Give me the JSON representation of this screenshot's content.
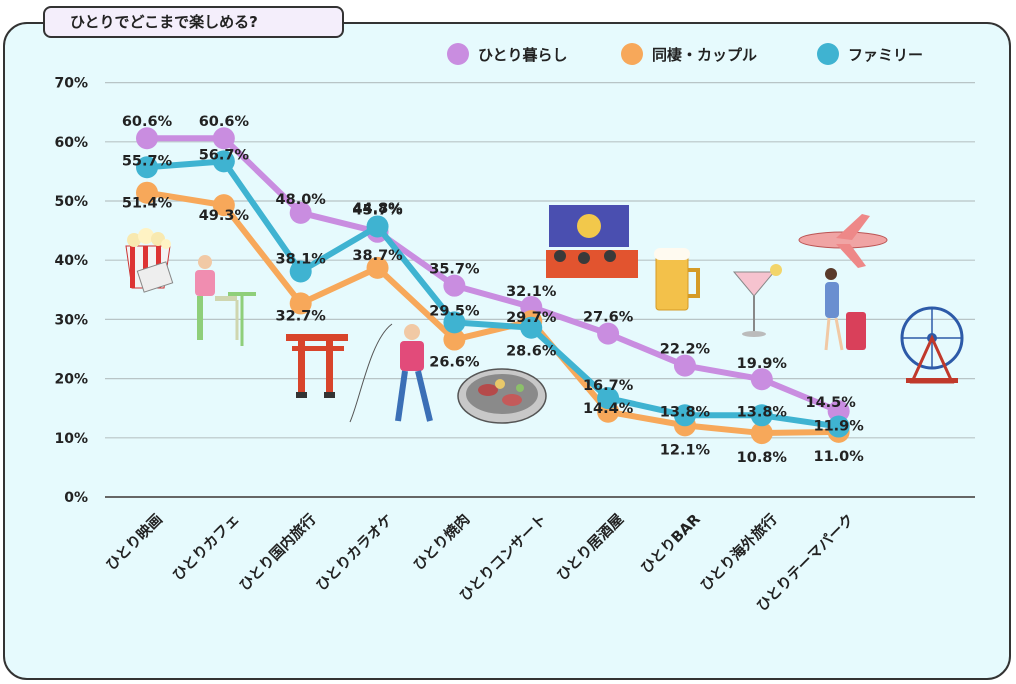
{
  "title": "ひとりでどこまで楽しめる?",
  "chart_data": {
    "type": "line",
    "categories": [
      "ひとり映画",
      "ひとりカフェ",
      "ひとり国内旅行",
      "ひとりカラオケ",
      "ひとり焼肉",
      "ひとりコンサート",
      "ひとり居酒屋",
      "ひとりBAR",
      "ひとり海外旅行",
      "ひとりテーマパーク"
    ],
    "ylim": [
      0,
      70
    ],
    "yticks": [
      0,
      10,
      20,
      30,
      40,
      50,
      60,
      70
    ],
    "ytick_labels": [
      "0%",
      "10%",
      "20%",
      "30%",
      "40%",
      "50%",
      "60%",
      "70%"
    ],
    "grid": true,
    "legend_position": "top-right",
    "series": [
      {
        "name": "ひとり暮らし",
        "color": "#c98de0",
        "values": [
          60.6,
          60.6,
          48.0,
          44.8,
          35.7,
          32.1,
          27.6,
          22.2,
          19.9,
          14.5
        ],
        "labels": [
          "60.6%",
          "60.6%",
          "48.0%",
          "44.8%",
          "35.7%",
          "32.1%",
          "27.6%",
          "22.2%",
          "19.9%",
          "14.5%"
        ]
      },
      {
        "name": "同棲・カップル",
        "color": "#f7a85a",
        "values": [
          51.4,
          49.3,
          32.7,
          38.7,
          26.6,
          29.7,
          14.4,
          12.1,
          10.8,
          11.0
        ],
        "labels": [
          "51.4%",
          "49.3%",
          "32.7%",
          "38.7%",
          "26.6%",
          "29.7%",
          "14.4%",
          "12.1%",
          "10.8%",
          "11.0%"
        ]
      },
      {
        "name": "ファミリー",
        "color": "#3fb3d1",
        "values": [
          55.7,
          56.7,
          38.1,
          45.7,
          29.5,
          28.6,
          16.7,
          13.8,
          13.8,
          11.9
        ],
        "labels": [
          "55.7%",
          "56.7%",
          "38.1%",
          "45.7%",
          "29.5%",
          "28.6%",
          "16.7%",
          "13.8%",
          "13.8%",
          "11.9%"
        ]
      }
    ]
  }
}
